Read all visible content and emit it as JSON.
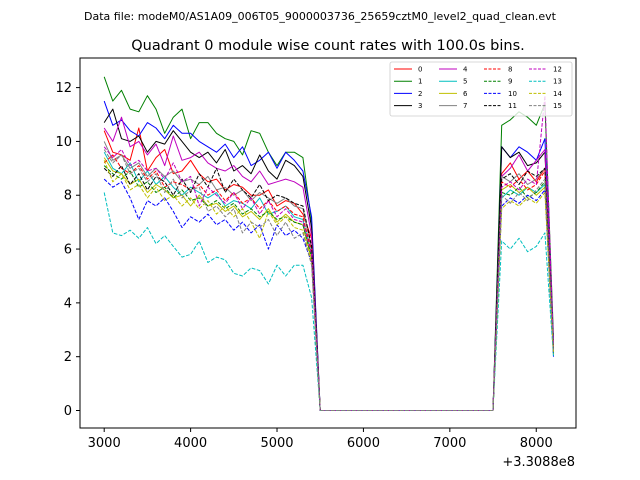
{
  "suptitle": "Data file: modeM0/AS1A09_006T05_9000003736_25659cztM0_level2_quad_clean.evt",
  "chart_data": {
    "type": "line",
    "title": "Quadrant 0 module wise count rates with 100.0s bins.",
    "xlabel": "",
    "ylabel": "",
    "x_offset_label": "+3.3088e8",
    "xlim": [
      2720,
      8460
    ],
    "ylim": [
      -0.65,
      13.1
    ],
    "xticks": [
      3000,
      4000,
      5000,
      6000,
      7000,
      8000
    ],
    "xtick_labels": [
      "3000",
      "4000",
      "5000",
      "6000",
      "7000",
      "8000"
    ],
    "yticks": [
      0,
      2,
      4,
      6,
      8,
      10,
      12
    ],
    "ytick_labels": [
      "0",
      "2",
      "4",
      "6",
      "8",
      "10",
      "12"
    ],
    "grid": false,
    "legend_position": "top-right",
    "x": [
      3000,
      3100,
      3200,
      3300,
      3400,
      3500,
      3600,
      3700,
      3800,
      3900,
      4000,
      4100,
      4200,
      4300,
      4400,
      4500,
      4600,
      4700,
      4800,
      4900,
      5000,
      5100,
      5200,
      5300,
      5400,
      5500,
      5600,
      5700,
      5800,
      5900,
      6000,
      6100,
      6200,
      6300,
      6400,
      6500,
      6600,
      6700,
      6800,
      6900,
      7000,
      7100,
      7200,
      7300,
      7400,
      7500,
      7600,
      7700,
      7800,
      7900,
      8000,
      8100,
      8200
    ],
    "series": [
      {
        "name": "0",
        "color": "#ff0000",
        "dash": false,
        "values": [
          10.4,
          9.6,
          9.5,
          9.3,
          10.5,
          8.9,
          9.4,
          9.7,
          8.8,
          8.9,
          9.3,
          8.8,
          8.5,
          8.6,
          8.2,
          8.4,
          8.3,
          8.0,
          8.0,
          8.2,
          7.6,
          7.8,
          7.7,
          7.3,
          6.4,
          0,
          0,
          0,
          0,
          0,
          0,
          0,
          0,
          0,
          0,
          0,
          0,
          0,
          0,
          0,
          0,
          0,
          0,
          0,
          0,
          0,
          8.8,
          9.2,
          8.6,
          8.9,
          8.5,
          9.0,
          2.4
        ]
      },
      {
        "name": "1",
        "color": "#008000",
        "dash": false,
        "values": [
          12.4,
          11.5,
          11.9,
          11.2,
          11.1,
          11.7,
          11.2,
          10.3,
          10.9,
          11.2,
          10.1,
          10.7,
          10.7,
          10.3,
          10.1,
          10.0,
          9.5,
          10.4,
          10.3,
          9.6,
          9.1,
          9.6,
          9.6,
          9.4,
          7.0,
          0,
          0,
          0,
          0,
          0,
          0,
          0,
          0,
          0,
          0,
          0,
          0,
          0,
          0,
          0,
          0,
          0,
          0,
          0,
          0,
          0,
          10.6,
          10.8,
          11.1,
          10.9,
          10.6,
          11.4,
          2.7
        ]
      },
      {
        "name": "2",
        "color": "#0000ff",
        "dash": false,
        "values": [
          11.5,
          10.6,
          10.8,
          10.4,
          10.2,
          10.7,
          10.5,
          10.1,
          10.6,
          10.3,
          10.3,
          10.0,
          9.8,
          9.6,
          9.9,
          9.4,
          9.8,
          9.1,
          9.3,
          9.6,
          9.0,
          9.6,
          9.3,
          8.9,
          7.2,
          0,
          0,
          0,
          0,
          0,
          0,
          0,
          0,
          0,
          0,
          0,
          0,
          0,
          0,
          0,
          0,
          0,
          0,
          0,
          0,
          0,
          9.8,
          9.4,
          9.8,
          9.6,
          9.3,
          10.1,
          2.5
        ]
      },
      {
        "name": "3",
        "color": "#000000",
        "dash": false,
        "values": [
          10.7,
          11.2,
          10.1,
          10.0,
          10.2,
          9.6,
          10.0,
          9.9,
          10.4,
          10.0,
          9.6,
          9.4,
          9.6,
          9.2,
          9.7,
          8.9,
          9.1,
          8.8,
          9.5,
          8.9,
          8.6,
          9.3,
          9.1,
          8.7,
          6.8,
          0,
          0,
          0,
          0,
          0,
          0,
          0,
          0,
          0,
          0,
          0,
          0,
          0,
          0,
          0,
          0,
          0,
          0,
          0,
          0,
          0,
          9.8,
          9.4,
          9.6,
          9.1,
          9.2,
          9.6,
          2.3
        ]
      },
      {
        "name": "4",
        "color": "#bf00bf",
        "dash": false,
        "values": [
          10.5,
          10.0,
          10.9,
          9.8,
          10.0,
          9.5,
          9.9,
          9.1,
          10.2,
          9.3,
          9.4,
          9.6,
          9.2,
          9.0,
          8.9,
          9.1,
          8.7,
          8.5,
          8.9,
          8.4,
          8.5,
          8.6,
          8.5,
          8.3,
          6.5,
          0,
          0,
          0,
          0,
          0,
          0,
          0,
          0,
          0,
          0,
          0,
          0,
          0,
          0,
          0,
          0,
          0,
          0,
          0,
          0,
          0,
          8.7,
          9.0,
          9.5,
          8.9,
          9.3,
          9.7,
          2.4
        ]
      },
      {
        "name": "5",
        "color": "#00bfbf",
        "dash": false,
        "values": [
          9.6,
          9.0,
          8.8,
          9.2,
          8.5,
          8.9,
          8.4,
          8.7,
          8.3,
          8.0,
          8.3,
          8.1,
          7.9,
          8.1,
          7.6,
          7.8,
          7.7,
          7.5,
          7.9,
          7.3,
          7.4,
          7.6,
          7.2,
          7.1,
          5.8,
          0,
          0,
          0,
          0,
          0,
          0,
          0,
          0,
          0,
          0,
          0,
          0,
          0,
          0,
          0,
          0,
          0,
          0,
          0,
          0,
          0,
          7.9,
          8.2,
          8.0,
          8.3,
          8.1,
          8.4,
          2.1
        ]
      },
      {
        "name": "6",
        "color": "#bfbf00",
        "dash": false,
        "values": [
          9.4,
          8.9,
          8.8,
          8.4,
          8.6,
          8.1,
          8.4,
          8.2,
          7.9,
          8.0,
          7.6,
          8.0,
          7.6,
          7.7,
          7.4,
          7.6,
          7.2,
          7.4,
          7.1,
          7.5,
          7.0,
          7.3,
          7.0,
          6.9,
          5.6,
          0,
          0,
          0,
          0,
          0,
          0,
          0,
          0,
          0,
          0,
          0,
          0,
          0,
          0,
          0,
          0,
          0,
          0,
          0,
          0,
          0,
          8.2,
          8.4,
          8.1,
          8.3,
          8.0,
          8.3,
          2.2
        ]
      },
      {
        "name": "7",
        "color": "#808080",
        "dash": false,
        "values": [
          10.0,
          9.3,
          9.5,
          9.0,
          9.2,
          8.7,
          9.0,
          8.7,
          8.9,
          8.5,
          8.6,
          8.4,
          8.7,
          8.2,
          8.3,
          8.0,
          8.2,
          7.8,
          8.1,
          7.9,
          7.7,
          7.9,
          7.6,
          7.5,
          6.0,
          0,
          0,
          0,
          0,
          0,
          0,
          0,
          0,
          0,
          0,
          0,
          0,
          0,
          0,
          0,
          0,
          0,
          0,
          0,
          0,
          0,
          8.7,
          8.5,
          8.8,
          8.4,
          8.6,
          9.0,
          2.3
        ]
      },
      {
        "name": "8",
        "color": "#ff0000",
        "dash": true,
        "values": [
          9.2,
          9.5,
          9.0,
          8.8,
          9.1,
          8.6,
          8.9,
          8.3,
          8.5,
          8.4,
          8.2,
          8.4,
          8.0,
          8.2,
          7.8,
          8.1,
          7.7,
          7.9,
          7.5,
          7.8,
          7.4,
          7.6,
          7.3,
          7.2,
          5.9,
          0,
          0,
          0,
          0,
          0,
          0,
          0,
          0,
          0,
          0,
          0,
          0,
          0,
          0,
          0,
          0,
          0,
          0,
          0,
          0,
          0,
          8.5,
          8.3,
          8.6,
          8.2,
          8.4,
          8.9,
          2.2
        ]
      },
      {
        "name": "9",
        "color": "#008000",
        "dash": true,
        "values": [
          9.1,
          8.8,
          8.6,
          8.9,
          8.3,
          8.5,
          8.1,
          8.3,
          7.9,
          8.2,
          7.8,
          7.9,
          7.6,
          7.8,
          7.5,
          7.7,
          7.3,
          7.5,
          7.2,
          7.4,
          7.1,
          7.2,
          7.0,
          6.9,
          5.7,
          0,
          0,
          0,
          0,
          0,
          0,
          0,
          0,
          0,
          0,
          0,
          0,
          0,
          0,
          0,
          0,
          0,
          0,
          0,
          0,
          0,
          8.1,
          8.0,
          8.3,
          7.9,
          8.1,
          8.5,
          2.1
        ]
      },
      {
        "name": "10",
        "color": "#0000ff",
        "dash": true,
        "values": [
          8.6,
          8.3,
          8.5,
          7.9,
          7.1,
          7.8,
          7.6,
          7.9,
          7.4,
          6.8,
          7.2,
          7.0,
          7.3,
          6.9,
          7.1,
          6.7,
          7.0,
          6.6,
          6.9,
          6.0,
          6.9,
          6.5,
          6.7,
          6.4,
          5.5,
          0,
          0,
          0,
          0,
          0,
          0,
          0,
          0,
          0,
          0,
          0,
          0,
          0,
          0,
          0,
          0,
          0,
          0,
          0,
          0,
          0,
          7.6,
          7.9,
          7.7,
          8.0,
          7.8,
          8.2,
          2.0
        ]
      },
      {
        "name": "11",
        "color": "#000000",
        "dash": true,
        "values": [
          9.0,
          8.7,
          9.1,
          8.4,
          8.8,
          8.2,
          8.7,
          8.5,
          8.0,
          8.6,
          8.1,
          8.8,
          8.3,
          9.0,
          8.1,
          8.6,
          8.2,
          7.9,
          8.4,
          7.8,
          8.0,
          7.9,
          7.7,
          7.6,
          6.1,
          0,
          0,
          0,
          0,
          0,
          0,
          0,
          0,
          0,
          0,
          0,
          0,
          0,
          0,
          0,
          0,
          0,
          0,
          0,
          0,
          0,
          8.6,
          8.8,
          8.4,
          8.9,
          8.7,
          9.0,
          2.3
        ]
      },
      {
        "name": "12",
        "color": "#bf00bf",
        "dash": true,
        "values": [
          9.8,
          9.4,
          9.7,
          9.1,
          9.3,
          8.9,
          9.0,
          8.6,
          9.2,
          8.5,
          8.7,
          7.6,
          8.3,
          8.0,
          7.7,
          8.1,
          7.5,
          7.9,
          7.3,
          7.8,
          7.2,
          7.5,
          7.1,
          7.0,
          5.8,
          0,
          0,
          0,
          0,
          0,
          0,
          0,
          0,
          0,
          0,
          0,
          0,
          0,
          0,
          0,
          0,
          0,
          0,
          0,
          0,
          0,
          8.3,
          8.5,
          8.2,
          8.6,
          8.4,
          11.7,
          2.4
        ]
      },
      {
        "name": "13",
        "color": "#00bfbf",
        "dash": true,
        "values": [
          8.1,
          6.6,
          6.5,
          6.7,
          6.4,
          6.8,
          6.2,
          6.5,
          6.1,
          5.7,
          5.8,
          6.3,
          5.5,
          5.7,
          5.6,
          5.1,
          5.0,
          5.3,
          5.2,
          4.7,
          5.4,
          5.0,
          5.4,
          5.4,
          4.2,
          0,
          0,
          0,
          0,
          0,
          0,
          0,
          0,
          0,
          0,
          0,
          0,
          0,
          0,
          0,
          0,
          0,
          0,
          0,
          0,
          0,
          6.3,
          6.0,
          6.4,
          5.9,
          6.1,
          6.6,
          2.0
        ]
      },
      {
        "name": "14",
        "color": "#bfbf00",
        "dash": true,
        "values": [
          9.3,
          8.5,
          8.8,
          8.2,
          8.4,
          7.9,
          8.3,
          7.8,
          8.0,
          7.6,
          7.9,
          7.5,
          7.8,
          7.3,
          7.6,
          7.2,
          7.5,
          7.0,
          6.4,
          7.4,
          6.9,
          7.2,
          6.8,
          6.7,
          5.5,
          0,
          0,
          0,
          0,
          0,
          0,
          0,
          0,
          0,
          0,
          0,
          0,
          0,
          0,
          0,
          0,
          0,
          0,
          0,
          0,
          0,
          7.5,
          7.8,
          7.6,
          7.9,
          7.7,
          8.1,
          2.1
        ]
      },
      {
        "name": "15",
        "color": "#808080",
        "dash": true,
        "values": [
          9.7,
          9.2,
          9.5,
          8.8,
          9.0,
          8.5,
          8.8,
          8.1,
          8.6,
          7.9,
          8.2,
          8.3,
          7.4,
          7.6,
          7.2,
          7.5,
          6.6,
          7.0,
          6.8,
          7.1,
          6.5,
          7.0,
          6.4,
          6.6,
          5.4,
          0,
          0,
          0,
          0,
          0,
          0,
          0,
          0,
          0,
          0,
          0,
          0,
          0,
          0,
          0,
          0,
          0,
          0,
          0,
          0,
          0,
          8.0,
          7.7,
          8.1,
          7.8,
          8.2,
          8.6,
          2.2
        ]
      }
    ]
  }
}
